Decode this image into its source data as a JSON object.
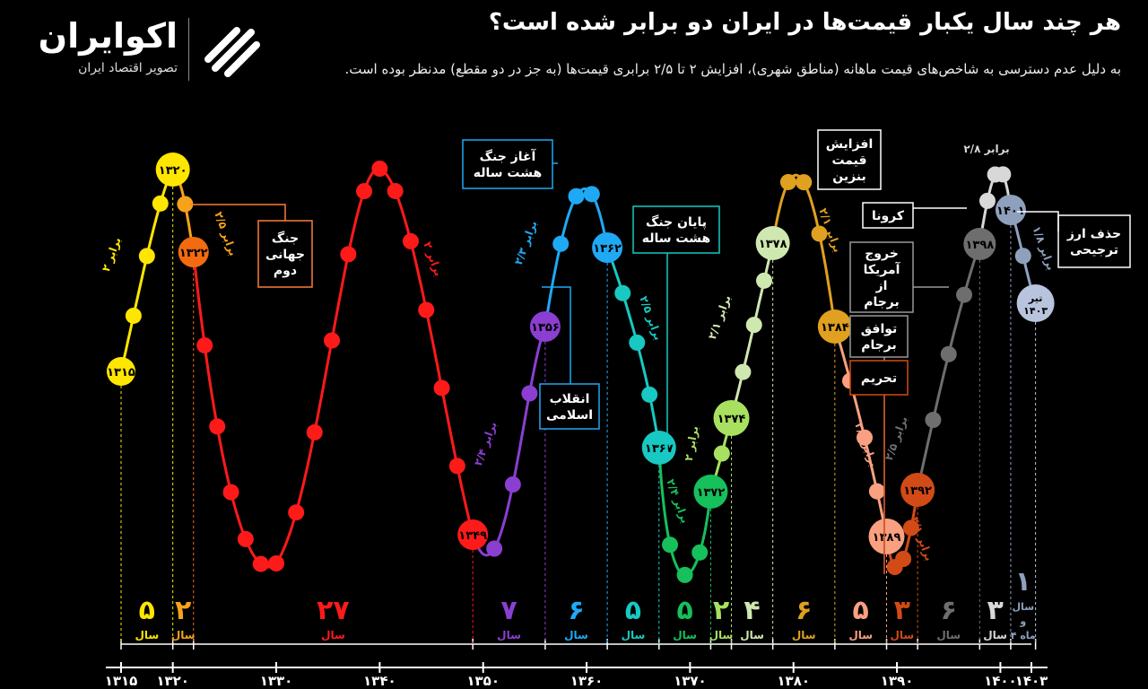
{
  "brand": {
    "name": "اکوایران",
    "tagline": "تصویر اقتصاد ایران",
    "logo_icon": "ecoiran-swoosh-icon"
  },
  "title": "هر چند سال یکبار قیمت‌ها در ایران دو برابر شده است؟",
  "subtitle": "به دلیل عدم دسترسی به شاخص‌های قیمت ماهانه (مناطق شهری)، افزایش ۲ تا ۲/۵ برابری قیمت‌ها (به جز در دو مقطع) مدنظر بوده است.",
  "chart_data": {
    "type": "line",
    "x_axis": {
      "ticks": [
        {
          "year": 1315,
          "label": "۱۳۱۵"
        },
        {
          "year": 1320,
          "label": "۱۳۲۰"
        },
        {
          "year": 1330,
          "label": "۱۳۳۰"
        },
        {
          "year": 1340,
          "label": "۱۳۴۰"
        },
        {
          "year": 1350,
          "label": "۱۳۵۰"
        },
        {
          "year": 1360,
          "label": "۱۳۶۰"
        },
        {
          "year": 1370,
          "label": "۱۳۷۰"
        },
        {
          "year": 1380,
          "label": "۱۳۸۰"
        },
        {
          "year": 1390,
          "label": "۱۳۹۰"
        },
        {
          "year": 1400,
          "label": "۱۴۰۰"
        },
        {
          "year": 1403,
          "label": "۱۴۰۳"
        }
      ],
      "range": [
        1315,
        1403.6
      ]
    },
    "boundaries": [
      1315,
      1320,
      1322,
      1349,
      1356,
      1362,
      1367,
      1372,
      1374,
      1378,
      1384,
      1389,
      1392,
      1398,
      1401,
      1403.4
    ],
    "periods": [
      {
        "start": 1315,
        "end": 1320,
        "years": "۵",
        "unit": "سال",
        "multiplier": "۲ برابر",
        "color": "#ffe600",
        "start_label": "۱۳۱۵",
        "end_label": "۱۳۲۰",
        "direction": "up"
      },
      {
        "start": 1320,
        "end": 1322,
        "years": "۲",
        "unit": "سال",
        "multiplier": "۲/۵ برابر",
        "color": "#f7a21b",
        "end_label": "۱۳۲۲",
        "direction": "down"
      },
      {
        "start": 1322,
        "end": 1349,
        "years": "۲۷",
        "unit": "سال",
        "multiplier": "۲ برابر",
        "color": "#ff1a1a",
        "end_label": "۱۳۴۹",
        "direction": "wave"
      },
      {
        "start": 1349,
        "end": 1356,
        "years": "۷",
        "unit": "سال",
        "multiplier": "۲/۴ برابر",
        "color": "#8a3fd1",
        "end_label": "۱۳۵۶",
        "direction": "up"
      },
      {
        "start": 1356,
        "end": 1362,
        "years": "۶",
        "unit": "سال",
        "multiplier": "۲/۳ برابر",
        "color": "#1fa9f5",
        "end_label": "۱۳۶۲",
        "direction": "peak"
      },
      {
        "start": 1362,
        "end": 1367,
        "years": "۵",
        "unit": "سال",
        "multiplier": "۲/۵ برابر",
        "color": "#17c9c2",
        "end_label": "۱۳۶۷",
        "direction": "down"
      },
      {
        "start": 1367,
        "end": 1372,
        "years": "۵",
        "unit": "سال",
        "multiplier": "۲/۴ برابر",
        "color": "#16c05b",
        "end_label": "۱۳۷۲",
        "direction": "trough"
      },
      {
        "start": 1372,
        "end": 1374,
        "years": "۲",
        "unit": "سال",
        "multiplier": "۲ برابر",
        "color": "#a8e060",
        "end_label": "۱۳۷۴",
        "direction": "up"
      },
      {
        "start": 1374,
        "end": 1378,
        "years": "۴",
        "unit": "سال",
        "multiplier": "۲/۱ برابر",
        "color": "#cfe8b0",
        "end_label": "۱۳۷۸",
        "direction": "up"
      },
      {
        "start": 1378,
        "end": 1384,
        "years": "۶",
        "unit": "سال",
        "multiplier": "۲/۱ برابر",
        "color": "#e0a020",
        "end_label": "۱۳۸۴",
        "direction": "peak"
      },
      {
        "start": 1384,
        "end": 1389,
        "years": "۵",
        "unit": "سال",
        "multiplier": "۲/۱ برابر",
        "color": "#f8a080",
        "end_label": "۱۳۸۹",
        "direction": "down"
      },
      {
        "start": 1389,
        "end": 1392,
        "years": "۳",
        "unit": "سال",
        "multiplier": "۲/۱ برابر",
        "color": "#d24a16",
        "end_label": "۱۳۹۲",
        "direction": "trough"
      },
      {
        "start": 1392,
        "end": 1398,
        "years": "۶",
        "unit": "سال",
        "multiplier": "۲/۵ برابر",
        "color": "#6e6e6e",
        "end_label": "۱۳۹۸",
        "direction": "up"
      },
      {
        "start": 1398,
        "end": 1401,
        "years": "۳",
        "unit": "سال",
        "multiplier": "۲/۸ برابر",
        "color": "#d8d8d8",
        "end_label": "۱۴۰۱",
        "direction": "peak"
      },
      {
        "start": 1401,
        "end": 1403.4,
        "years": "۱",
        "unit": "سال و ۴ ماه",
        "multiplier": "۱/۸ برابر",
        "color": "#8fa0bd",
        "end_label": "تیر ۱۴۰۳",
        "direction": "down"
      }
    ],
    "annotations": [
      {
        "text": "جنگ جهانی دوم",
        "color": "#ff7a3a"
      },
      {
        "text": "آغاز جنگ هشت ساله",
        "color": "#1fa9f5"
      },
      {
        "text": "انقلاب اسلامی",
        "color": "#1fa9f5"
      },
      {
        "text": "پایان جنگ هشت ساله",
        "color": "#17c9c2"
      },
      {
        "text": "افزایش قیمت بنزین",
        "color": "#ffffff"
      },
      {
        "text": "کرونا",
        "color": "#ffffff"
      },
      {
        "text": "خروج آمریکا از برجام",
        "color": "#999999"
      },
      {
        "text": "توافق برجام",
        "color": "#999999"
      },
      {
        "text": "تحریم",
        "color": "#d24a16"
      },
      {
        "text": "حذف ارز ترجیحی",
        "color": "#ffffff"
      }
    ]
  }
}
